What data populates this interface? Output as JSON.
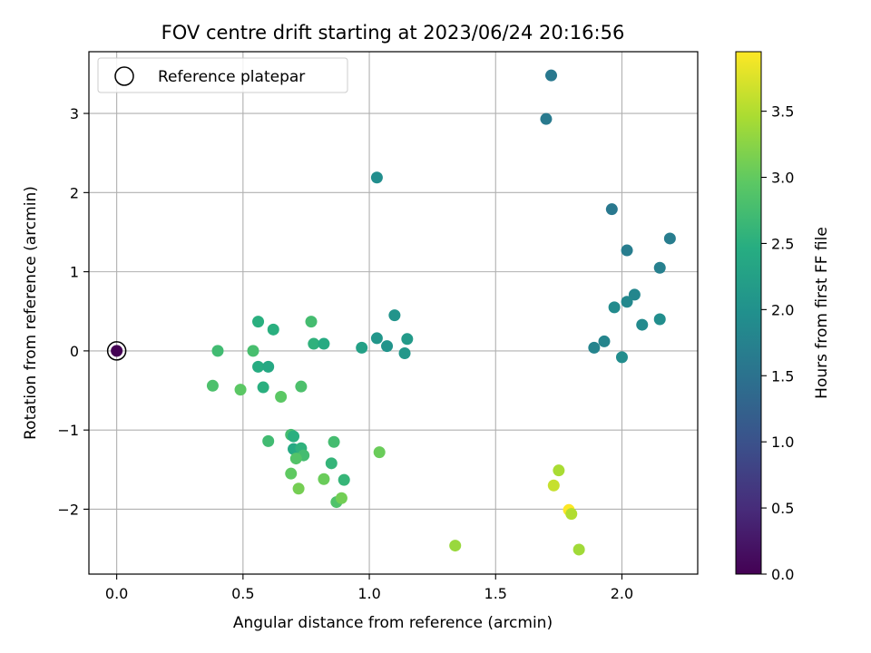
{
  "chart_data": {
    "type": "scatter",
    "title": "FOV centre drift starting at 2023/06/24 20:16:56",
    "xlabel": "Angular distance from reference (arcmin)",
    "ylabel": "Rotation from reference (arcmin)",
    "xlim": [
      -0.11,
      2.3
    ],
    "ylim": [
      -2.82,
      3.78
    ],
    "xticks": [
      0.0,
      0.5,
      1.0,
      1.5,
      2.0
    ],
    "xtick_labels": [
      "0.0",
      "0.5",
      "1.0",
      "1.5",
      "2.0"
    ],
    "yticks": [
      -2,
      -1,
      0,
      1,
      2,
      3
    ],
    "ytick_labels": [
      "−2",
      "−1",
      "0",
      "1",
      "2",
      "3"
    ],
    "grid": true,
    "legend": {
      "placement": "upper-left",
      "entries": [
        "Reference platepar"
      ]
    },
    "colorbar": {
      "label": "Hours from first FF file",
      "colormap": "viridis",
      "range": [
        0.0,
        3.95
      ],
      "ticks": [
        0.0,
        0.5,
        1.0,
        1.5,
        2.0,
        2.5,
        3.0,
        3.5
      ],
      "tick_labels": [
        "0.0",
        "0.5",
        "1.0",
        "1.5",
        "2.0",
        "2.5",
        "3.0",
        "3.5"
      ]
    },
    "reference_point": {
      "x": 0.0,
      "y": 0.0
    },
    "points": [
      {
        "x": 0.0,
        "y": 0.0,
        "t": 0.0
      },
      {
        "x": 1.72,
        "y": 3.48,
        "t": 1.6
      },
      {
        "x": 1.7,
        "y": 2.93,
        "t": 1.62
      },
      {
        "x": 1.96,
        "y": 1.79,
        "t": 1.6
      },
      {
        "x": 2.02,
        "y": 1.27,
        "t": 1.68
      },
      {
        "x": 2.19,
        "y": 1.42,
        "t": 1.68
      },
      {
        "x": 2.15,
        "y": 1.05,
        "t": 1.72
      },
      {
        "x": 2.05,
        "y": 0.71,
        "t": 1.82
      },
      {
        "x": 2.02,
        "y": 0.62,
        "t": 1.85
      },
      {
        "x": 1.97,
        "y": 0.55,
        "t": 1.9
      },
      {
        "x": 2.08,
        "y": 0.33,
        "t": 1.88
      },
      {
        "x": 2.15,
        "y": 0.4,
        "t": 1.95
      },
      {
        "x": 1.93,
        "y": 0.12,
        "t": 1.8
      },
      {
        "x": 1.89,
        "y": 0.04,
        "t": 1.78
      },
      {
        "x": 2.0,
        "y": -0.08,
        "t": 1.92
      },
      {
        "x": 1.03,
        "y": 2.19,
        "t": 1.95
      },
      {
        "x": 1.1,
        "y": 0.45,
        "t": 2.05
      },
      {
        "x": 1.03,
        "y": 0.16,
        "t": 2.08
      },
      {
        "x": 1.15,
        "y": 0.15,
        "t": 2.15
      },
      {
        "x": 1.07,
        "y": 0.06,
        "t": 2.05
      },
      {
        "x": 1.14,
        "y": -0.03,
        "t": 2.1
      },
      {
        "x": 0.97,
        "y": 0.04,
        "t": 2.25
      },
      {
        "x": 0.77,
        "y": 0.37,
        "t": 2.75
      },
      {
        "x": 0.78,
        "y": 0.09,
        "t": 2.55
      },
      {
        "x": 0.82,
        "y": 0.09,
        "t": 2.42
      },
      {
        "x": 0.56,
        "y": 0.37,
        "t": 2.5
      },
      {
        "x": 0.62,
        "y": 0.27,
        "t": 2.5
      },
      {
        "x": 0.54,
        "y": 0.0,
        "t": 2.78
      },
      {
        "x": 0.4,
        "y": 0.0,
        "t": 2.72
      },
      {
        "x": 0.56,
        "y": -0.2,
        "t": 2.45
      },
      {
        "x": 0.6,
        "y": -0.2,
        "t": 2.38
      },
      {
        "x": 0.58,
        "y": -0.46,
        "t": 2.5
      },
      {
        "x": 0.38,
        "y": -0.44,
        "t": 2.82
      },
      {
        "x": 0.49,
        "y": -0.49,
        "t": 2.95
      },
      {
        "x": 0.65,
        "y": -0.58,
        "t": 2.95
      },
      {
        "x": 0.73,
        "y": -0.45,
        "t": 2.82
      },
      {
        "x": 0.69,
        "y": -1.06,
        "t": 2.75
      },
      {
        "x": 0.7,
        "y": -1.08,
        "t": 2.5
      },
      {
        "x": 0.6,
        "y": -1.14,
        "t": 2.72
      },
      {
        "x": 0.7,
        "y": -1.24,
        "t": 2.4
      },
      {
        "x": 0.73,
        "y": -1.23,
        "t": 2.55
      },
      {
        "x": 0.74,
        "y": -1.32,
        "t": 2.75
      },
      {
        "x": 0.71,
        "y": -1.36,
        "t": 2.88
      },
      {
        "x": 0.86,
        "y": -1.15,
        "t": 2.75
      },
      {
        "x": 0.85,
        "y": -1.42,
        "t": 2.6
      },
      {
        "x": 0.69,
        "y": -1.55,
        "t": 2.98
      },
      {
        "x": 0.72,
        "y": -1.74,
        "t": 3.12
      },
      {
        "x": 0.82,
        "y": -1.62,
        "t": 3.05
      },
      {
        "x": 0.9,
        "y": -1.63,
        "t": 2.62
      },
      {
        "x": 0.87,
        "y": -1.91,
        "t": 2.85
      },
      {
        "x": 0.89,
        "y": -1.86,
        "t": 3.1
      },
      {
        "x": 1.04,
        "y": -1.28,
        "t": 3.05
      },
      {
        "x": 1.34,
        "y": -2.46,
        "t": 3.35
      },
      {
        "x": 1.75,
        "y": -1.51,
        "t": 3.45
      },
      {
        "x": 1.73,
        "y": -1.7,
        "t": 3.62
      },
      {
        "x": 1.79,
        "y": -2.01,
        "t": 3.95
      },
      {
        "x": 1.8,
        "y": -2.06,
        "t": 3.5
      },
      {
        "x": 1.83,
        "y": -2.51,
        "t": 3.4
      }
    ]
  }
}
